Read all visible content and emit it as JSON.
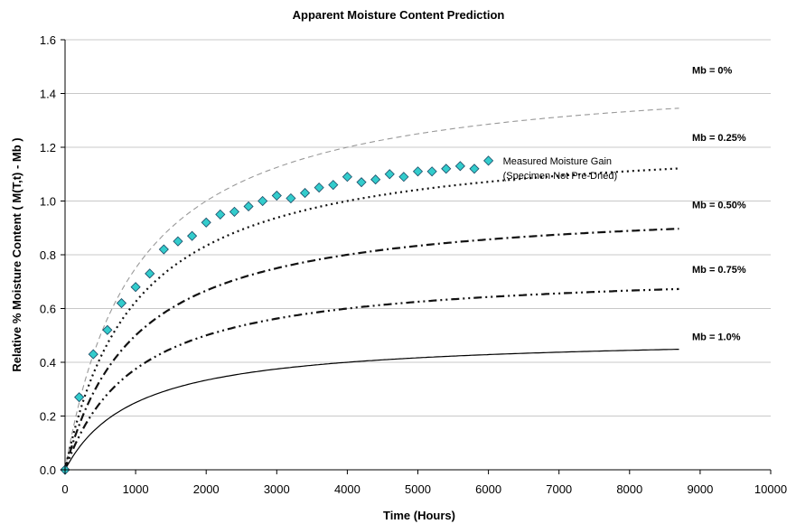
{
  "chart_data": {
    "type": "line",
    "title": "Apparent Moisture Content Prediction",
    "xlabel": "Time (Hours)",
    "ylabel": "Relative % Moisture Content ( M(T,t) - Mb )",
    "xlim": [
      0,
      10000
    ],
    "ylim": [
      0,
      1.6
    ],
    "xticks": [
      "0",
      "1000",
      "2000",
      "3000",
      "4000",
      "5000",
      "6000",
      "7000",
      "8000",
      "9000",
      "10000"
    ],
    "yticks": [
      "0.0",
      "0.2",
      "0.4",
      "0.6",
      "0.8",
      "1.0",
      "1.2",
      "1.4",
      "1.6"
    ],
    "grid": "horizontal",
    "x_end": 8700,
    "series": [
      {
        "name": "Mb = 0%",
        "style": "dashed",
        "color": "#999999",
        "asymptote": 1.5,
        "label_value": 1.49,
        "x": [
          0,
          500,
          1000,
          2000,
          3000,
          4000,
          5000,
          6000,
          7000,
          8000,
          8700
        ],
        "y": [
          0,
          0.66,
          0.95,
          1.24,
          1.36,
          1.43,
          1.46,
          1.47,
          1.48,
          1.49,
          1.49
        ]
      },
      {
        "name": "Mb = 0.25%",
        "style": "dotted",
        "color": "#111111",
        "asymptote": 1.25,
        "label_value": 1.24,
        "x": [
          0,
          500,
          1000,
          2000,
          3000,
          4000,
          5000,
          6000,
          7000,
          8000,
          8700
        ],
        "y": [
          0,
          0.55,
          0.79,
          1.03,
          1.14,
          1.19,
          1.22,
          1.23,
          1.24,
          1.24,
          1.24
        ]
      },
      {
        "name": "Mb = 0.50%",
        "style": "dashdot",
        "color": "#111111",
        "asymptote": 1.0,
        "label_value": 0.99,
        "x": [
          0,
          500,
          1000,
          2000,
          3000,
          4000,
          5000,
          6000,
          7000,
          8000,
          8700
        ],
        "y": [
          0,
          0.44,
          0.63,
          0.83,
          0.91,
          0.95,
          0.97,
          0.98,
          0.99,
          0.99,
          0.99
        ]
      },
      {
        "name": "Mb = 0.75%",
        "style": "dashdotdot",
        "color": "#111111",
        "asymptote": 0.75,
        "label_value": 0.75,
        "x": [
          0,
          500,
          1000,
          2000,
          3000,
          4000,
          5000,
          6000,
          7000,
          8000,
          8700
        ],
        "y": [
          0,
          0.33,
          0.47,
          0.62,
          0.68,
          0.71,
          0.73,
          0.74,
          0.74,
          0.74,
          0.75
        ]
      },
      {
        "name": "Mb = 1.0%",
        "style": "solid",
        "color": "#000000",
        "asymptote": 0.5,
        "label_value": 0.5,
        "x": [
          0,
          500,
          1000,
          2000,
          3000,
          4000,
          5000,
          6000,
          7000,
          8000,
          8700
        ],
        "y": [
          0,
          0.22,
          0.32,
          0.41,
          0.45,
          0.47,
          0.48,
          0.49,
          0.49,
          0.5,
          0.5
        ]
      }
    ],
    "measured": {
      "name_line1": "Measured Moisture Gain",
      "name_line2": "(Specimen Not Pre-Dried)",
      "marker": "diamond",
      "color": "#33cccc",
      "x": [
        0,
        200,
        400,
        600,
        800,
        1000,
        1200,
        1400,
        1600,
        1800,
        2000,
        2200,
        2400,
        2600,
        2800,
        3000,
        3200,
        3400,
        3600,
        3800,
        4000,
        4200,
        4400,
        4600,
        4800,
        5000,
        5200,
        5400,
        5600,
        5800,
        6000
      ],
      "y": [
        0.0,
        0.27,
        0.43,
        0.52,
        0.62,
        0.68,
        0.73,
        0.82,
        0.85,
        0.87,
        0.92,
        0.95,
        0.96,
        0.98,
        1.0,
        1.02,
        1.01,
        1.03,
        1.05,
        1.06,
        1.09,
        1.07,
        1.08,
        1.1,
        1.09,
        1.11,
        1.11,
        1.12,
        1.13,
        1.12,
        1.15
      ]
    }
  }
}
